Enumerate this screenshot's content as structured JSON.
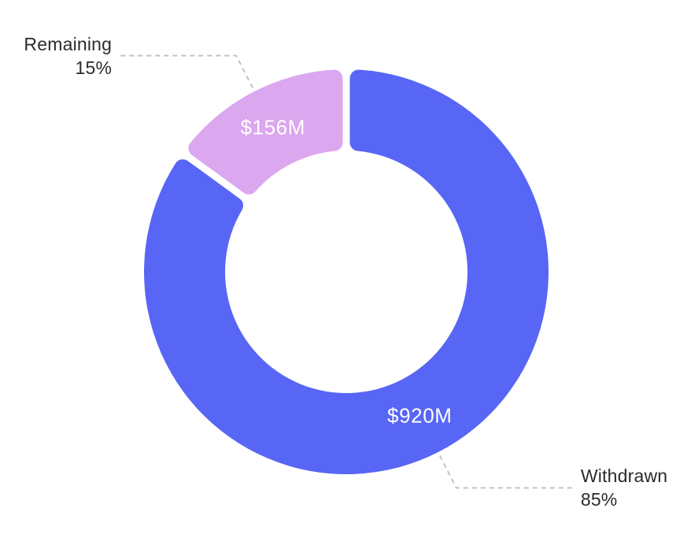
{
  "chart_data": {
    "type": "pie",
    "variant": "donut",
    "title": "",
    "legend": "none",
    "background": "#ffffff",
    "start_angle_deg": 0,
    "clockwise": true,
    "inner_radius_ratio": 0.6,
    "slices": [
      {
        "label": "Withdrawn",
        "percent": 85,
        "percent_label": "85%",
        "value": "$920M",
        "color": "#5866F5"
      },
      {
        "label": "Remaining",
        "percent": 15,
        "percent_label": "15%",
        "value": "$156M",
        "color": "#DBA7EF"
      }
    ],
    "value_label_color": "#ffffff",
    "callout": {
      "line_color": "#c2c2c2",
      "line_dash": "6 5",
      "text_color": "#2b2b2b"
    }
  }
}
